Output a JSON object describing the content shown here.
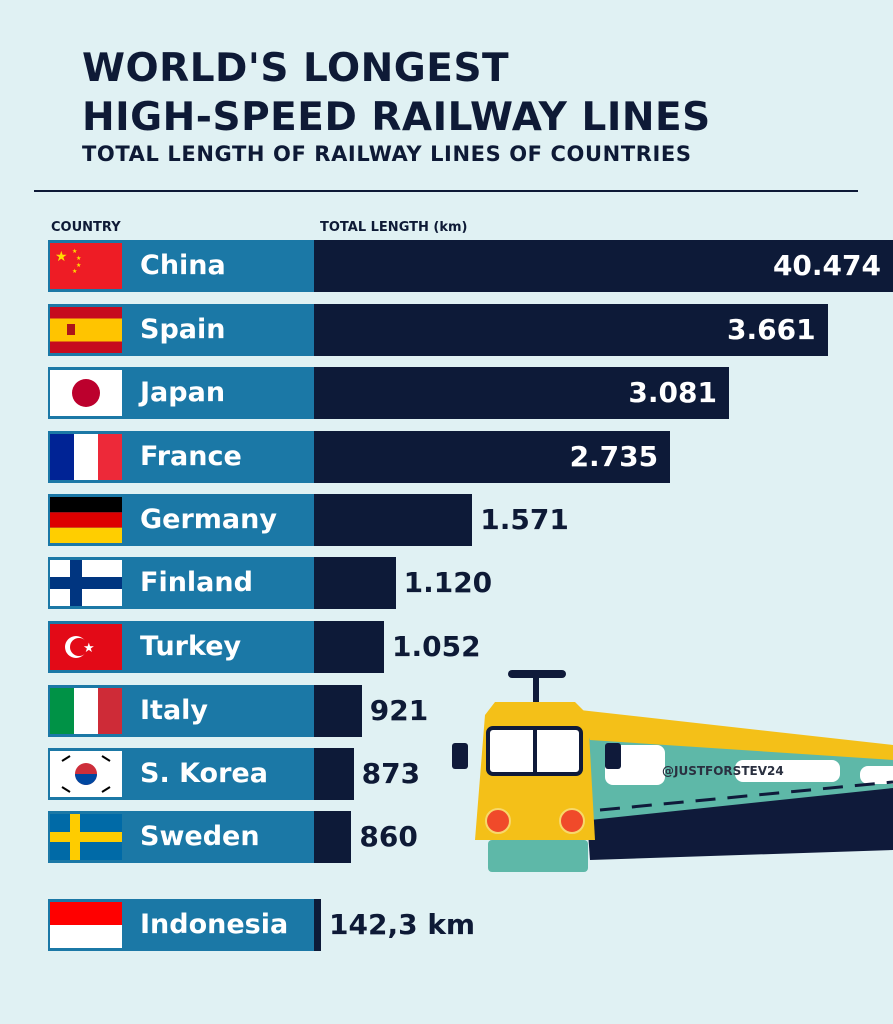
{
  "chart_data": {
    "type": "bar",
    "orientation": "horizontal",
    "title": "WORLD'S LONGEST HIGH-SPEED RAILWAY LINES",
    "title_lines": [
      "WORLD'S LONGEST",
      "HIGH-SPEED RAILWAY LINES"
    ],
    "subtitle": "TOTAL LENGTH OF RAILWAY LINES OF COUNTRIES",
    "xlabel": "TOTAL LENGTH (km)",
    "ylabel": "COUNTRY",
    "unit": "km",
    "categories": [
      "China",
      "Spain",
      "Japan",
      "France",
      "Germany",
      "Finland",
      "Turkey",
      "Italy",
      "S. Korea",
      "Sweden",
      "Indonesia"
    ],
    "values": [
      40474,
      3661,
      3081,
      2735,
      1571,
      1120,
      1052,
      921,
      873,
      860,
      142.3
    ],
    "value_labels": [
      "40.474",
      "3.661",
      "3.081",
      "2.735",
      "1.571",
      "1.120",
      "1.052",
      "921",
      "873",
      "860",
      "142,3 km"
    ],
    "flags": [
      "china-flag",
      "spain-flag",
      "japan-flag",
      "france-flag",
      "germany-flag",
      "finland-flag",
      "turkey-flag",
      "italy-flag",
      "south-korea-flag",
      "sweden-flag",
      "indonesia-flag"
    ],
    "colors": {
      "label_bg": "#1b78a6",
      "bar": "#0d1a38",
      "background": "#e0f1f3"
    },
    "grid": false
  },
  "watermark": "@JUSTFORSTEV24"
}
